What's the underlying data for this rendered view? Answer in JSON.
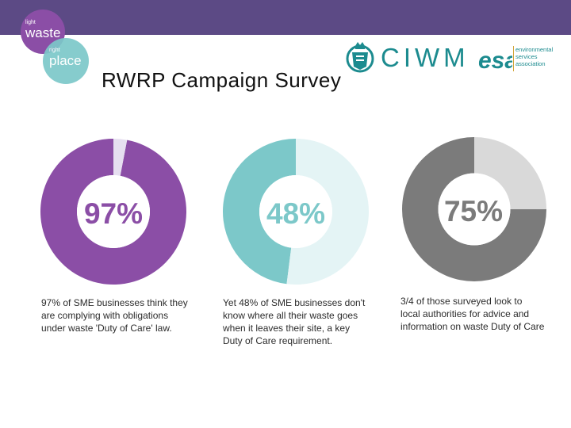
{
  "colors": {
    "top_bar": "#5c4a85",
    "purple": "#8b4ea6",
    "purple_light": "#e6dff0",
    "teal": "#7cc8c9",
    "teal_light": "#e4f4f5",
    "grey": "#7b7b7b",
    "grey_light": "#d9d9d9",
    "ciwm": "#1c8b8f",
    "esa": "#1c8b8f"
  },
  "logo": {
    "waste_small": "light",
    "waste_big": "waste",
    "place_small": "right",
    "place_big": "place"
  },
  "partners": {
    "ciwm_text": "CIWM",
    "esa_mark": "esa",
    "esa_lines": [
      "environmental",
      "services",
      "association"
    ]
  },
  "header": {
    "title": "RWRP Campaign Survey"
  },
  "stats": [
    {
      "label": "97%",
      "value": 97,
      "color_key": "purple",
      "caption": [
        "97% of SME businesses think they",
        "are complying with obligations",
        "under waste 'Duty of Care' law."
      ]
    },
    {
      "label": "48%",
      "value": 48,
      "color_key": "teal",
      "caption": [
        "Yet 48% of SME businesses don't",
        "know where all their waste goes",
        "when it leaves their site, a key",
        "Duty of Care requirement."
      ]
    },
    {
      "label": "75%",
      "value": 75,
      "color_key": "grey",
      "caption": [
        "3/4 of those surveyed look to",
        "local authorities for advice and",
        "information on waste Duty of Care"
      ]
    }
  ]
}
